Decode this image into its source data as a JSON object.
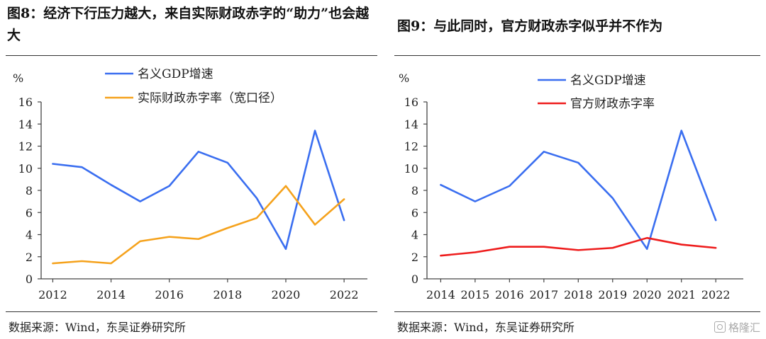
{
  "panels": [
    {
      "title": "图8：经济下行压力越大，来自实际财政赤字的“助力”也会越大",
      "source": "数据来源：Wind，东吴证券研究所"
    },
    {
      "title": "图9：与此同时，官方财政赤字似乎并不作为",
      "source": "数据来源：Wind，东吴证券研究所"
    }
  ],
  "watermark": {
    "text": "格隆汇",
    "icon": "gelonghui-logo-icon"
  },
  "chart_data": [
    {
      "type": "line",
      "ylabel": "%",
      "ylim": [
        0,
        16
      ],
      "yticks": [
        "0",
        "2",
        "4",
        "6",
        "8",
        "10",
        "12",
        "14",
        "16"
      ],
      "x": [
        2012,
        2013,
        2014,
        2015,
        2016,
        2017,
        2018,
        2019,
        2020,
        2021,
        2022
      ],
      "xtick_labels": [
        "2012",
        "2014",
        "2016",
        "2018",
        "2020",
        "2022"
      ],
      "legend_position": "top",
      "grid": false,
      "series": [
        {
          "name": "名义GDP增速",
          "color": "#3a6ef0",
          "values": [
            10.4,
            10.1,
            8.5,
            7.0,
            8.4,
            11.5,
            10.5,
            7.3,
            2.7,
            13.4,
            5.3
          ]
        },
        {
          "name": "实际财政赤字率（宽口径）",
          "color": "#f5a21c",
          "values": [
            1.4,
            1.6,
            1.4,
            3.4,
            3.8,
            3.6,
            4.6,
            5.5,
            8.4,
            4.9,
            7.2
          ]
        }
      ]
    },
    {
      "type": "line",
      "ylabel": "%",
      "ylim": [
        0,
        16
      ],
      "yticks": [
        "0",
        "2",
        "4",
        "6",
        "8",
        "10",
        "12",
        "14",
        "16"
      ],
      "x": [
        2014,
        2015,
        2016,
        2017,
        2018,
        2019,
        2020,
        2021,
        2022
      ],
      "xtick_labels": [
        "2014",
        "2015",
        "2016",
        "2017",
        "2018",
        "2019",
        "2020",
        "2021",
        "2022"
      ],
      "legend_position": "top",
      "grid": false,
      "series": [
        {
          "name": "名义GDP增速",
          "color": "#3a6ef0",
          "values": [
            8.5,
            7.0,
            8.4,
            11.5,
            10.5,
            7.3,
            2.7,
            13.4,
            5.3
          ]
        },
        {
          "name": "官方财政赤字率",
          "color": "#ee1c1c",
          "values": [
            2.1,
            2.4,
            2.9,
            2.9,
            2.6,
            2.8,
            3.7,
            3.1,
            2.8
          ]
        }
      ]
    }
  ]
}
